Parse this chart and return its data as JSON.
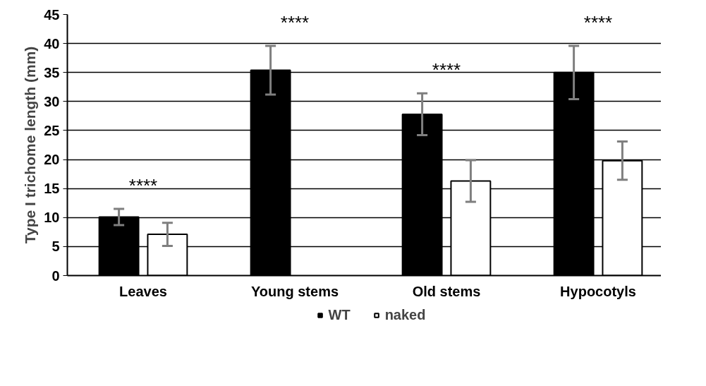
{
  "chart_data": {
    "type": "bar",
    "ylabel": "Type I trichome length (mm)",
    "categories": [
      "Leaves",
      "Young stems",
      "Old stems",
      "Hypocotyls"
    ],
    "series": [
      {
        "name": "WT",
        "color": "#000000",
        "values": [
          10.1,
          35.4,
          27.8,
          35.0
        ],
        "errors": [
          1.4,
          4.2,
          3.6,
          4.6
        ]
      },
      {
        "name": "naked",
        "color": "#ffffff",
        "values": [
          7.1,
          null,
          16.3,
          19.8
        ],
        "errors": [
          2.0,
          null,
          3.6,
          3.3
        ]
      }
    ],
    "ylim": [
      0,
      45
    ],
    "yticks": [
      0,
      5,
      10,
      15,
      20,
      25,
      30,
      35,
      40,
      45
    ],
    "grid": "y",
    "legend": "bottom",
    "annotations": [
      "****",
      "****",
      "****",
      "****"
    ]
  }
}
